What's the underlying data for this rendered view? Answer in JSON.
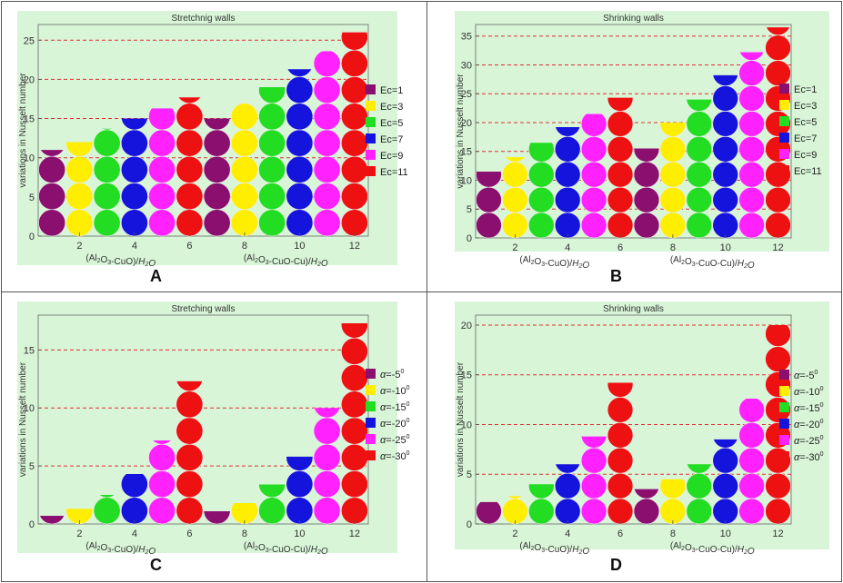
{
  "figure": {
    "letters": [
      "A",
      "B",
      "C",
      "D"
    ]
  },
  "chart_data": [
    {
      "type": "bar",
      "title": "Stretchnig walls",
      "ylabel": "variations in Nusselt number",
      "xlabel_groups": [
        "(Al2O3-CuO)/H2O",
        "(Al2O3-CuO-Cu)/H2O"
      ],
      "x": [
        1,
        2,
        3,
        4,
        5,
        6,
        7,
        8,
        9,
        10,
        11,
        12
      ],
      "x_ticks": [
        2,
        4,
        6,
        8,
        10,
        12
      ],
      "ylim": [
        0,
        27
      ],
      "y_ticks": [
        0,
        5,
        10,
        15,
        20,
        25
      ],
      "legend": [
        "Ec=1",
        "Ec=3",
        "Ec=5",
        "Ec=7",
        "Ec=9",
        "Ec=11"
      ],
      "colors": [
        "#8b0f6e",
        "#ffee00",
        "#22dd22",
        "#1414dd",
        "#ff22ff",
        "#ee1111"
      ],
      "values": [
        11,
        12,
        13.7,
        15,
        16.3,
        17.7,
        15,
        17,
        19,
        21.3,
        23.6,
        26
      ]
    },
    {
      "type": "bar",
      "title": "Shrinking walls",
      "ylabel": "variations in Nusselt number",
      "xlabel_groups": [
        "(Al2O3-CuO)/H2O",
        "(Al2O3-CuO-Cu)/H2O"
      ],
      "x": [
        1,
        2,
        3,
        4,
        5,
        6,
        7,
        8,
        9,
        10,
        11,
        12
      ],
      "x_ticks": [
        2,
        4,
        6,
        8,
        10,
        12
      ],
      "ylim": [
        0,
        37
      ],
      "y_ticks": [
        0,
        5,
        10,
        15,
        20,
        25,
        30,
        35
      ],
      "legend": [
        "Ec=1",
        "Ec=3",
        "Ec=5",
        "Ec=7",
        "Ec=9",
        "Ec=11"
      ],
      "colors": [
        "#8b0f6e",
        "#ffee00",
        "#22dd22",
        "#1414dd",
        "#ff22ff",
        "#ee1111"
      ],
      "values": [
        11.5,
        14,
        16.5,
        19.2,
        21.5,
        24.3,
        15.5,
        20,
        24,
        28.2,
        32.2,
        36.5
      ]
    },
    {
      "type": "bar",
      "title": "Stretching walls",
      "ylabel": "variations in Nusselt number",
      "xlabel_groups": [
        "(Al2O3-CuO)/H2O",
        "(Al2O3-CuO-Cu)/H2O"
      ],
      "x": [
        1,
        2,
        3,
        4,
        5,
        6,
        7,
        8,
        9,
        10,
        11,
        12
      ],
      "x_ticks": [
        2,
        4,
        6,
        8,
        10,
        12
      ],
      "ylim": [
        0,
        18
      ],
      "y_ticks": [
        0,
        5,
        10,
        15
      ],
      "legend": [
        "α=-5⁰",
        "α=-10⁰",
        "α=-15⁰",
        "α=-20⁰",
        "α=-25⁰",
        "α=-30⁰"
      ],
      "colors": [
        "#8b0f6e",
        "#ffee00",
        "#22dd22",
        "#1414dd",
        "#ff22ff",
        "#ee1111"
      ],
      "values": [
        0.7,
        1.3,
        2.5,
        4.3,
        7.2,
        12.3,
        1.1,
        1.8,
        3.4,
        5.8,
        10,
        17.3
      ]
    },
    {
      "type": "bar",
      "title": "Shrinking walls",
      "ylabel": "variations in Nusselt number",
      "xlabel_groups": [
        "(Al2O3-CuO)/H2O",
        "(Al2O3-CuO-Cu)/H2O"
      ],
      "x": [
        1,
        2,
        3,
        4,
        5,
        6,
        7,
        8,
        9,
        10,
        11,
        12
      ],
      "x_ticks": [
        2,
        4,
        6,
        8,
        10,
        12
      ],
      "ylim": [
        0,
        21
      ],
      "y_ticks": [
        0,
        5,
        10,
        15,
        20
      ],
      "legend": [
        "α=-5⁰",
        "α=-10⁰",
        "α=-15⁰",
        "α=-20⁰",
        "α=-25⁰",
        "α=-30⁰"
      ],
      "colors": [
        "#8b0f6e",
        "#ffee00",
        "#22dd22",
        "#1414dd",
        "#ff22ff",
        "#ee1111"
      ],
      "values": [
        2.2,
        2.8,
        4,
        6,
        8.8,
        14.2,
        3.5,
        4.5,
        6,
        8.5,
        12.6,
        20
      ]
    }
  ]
}
